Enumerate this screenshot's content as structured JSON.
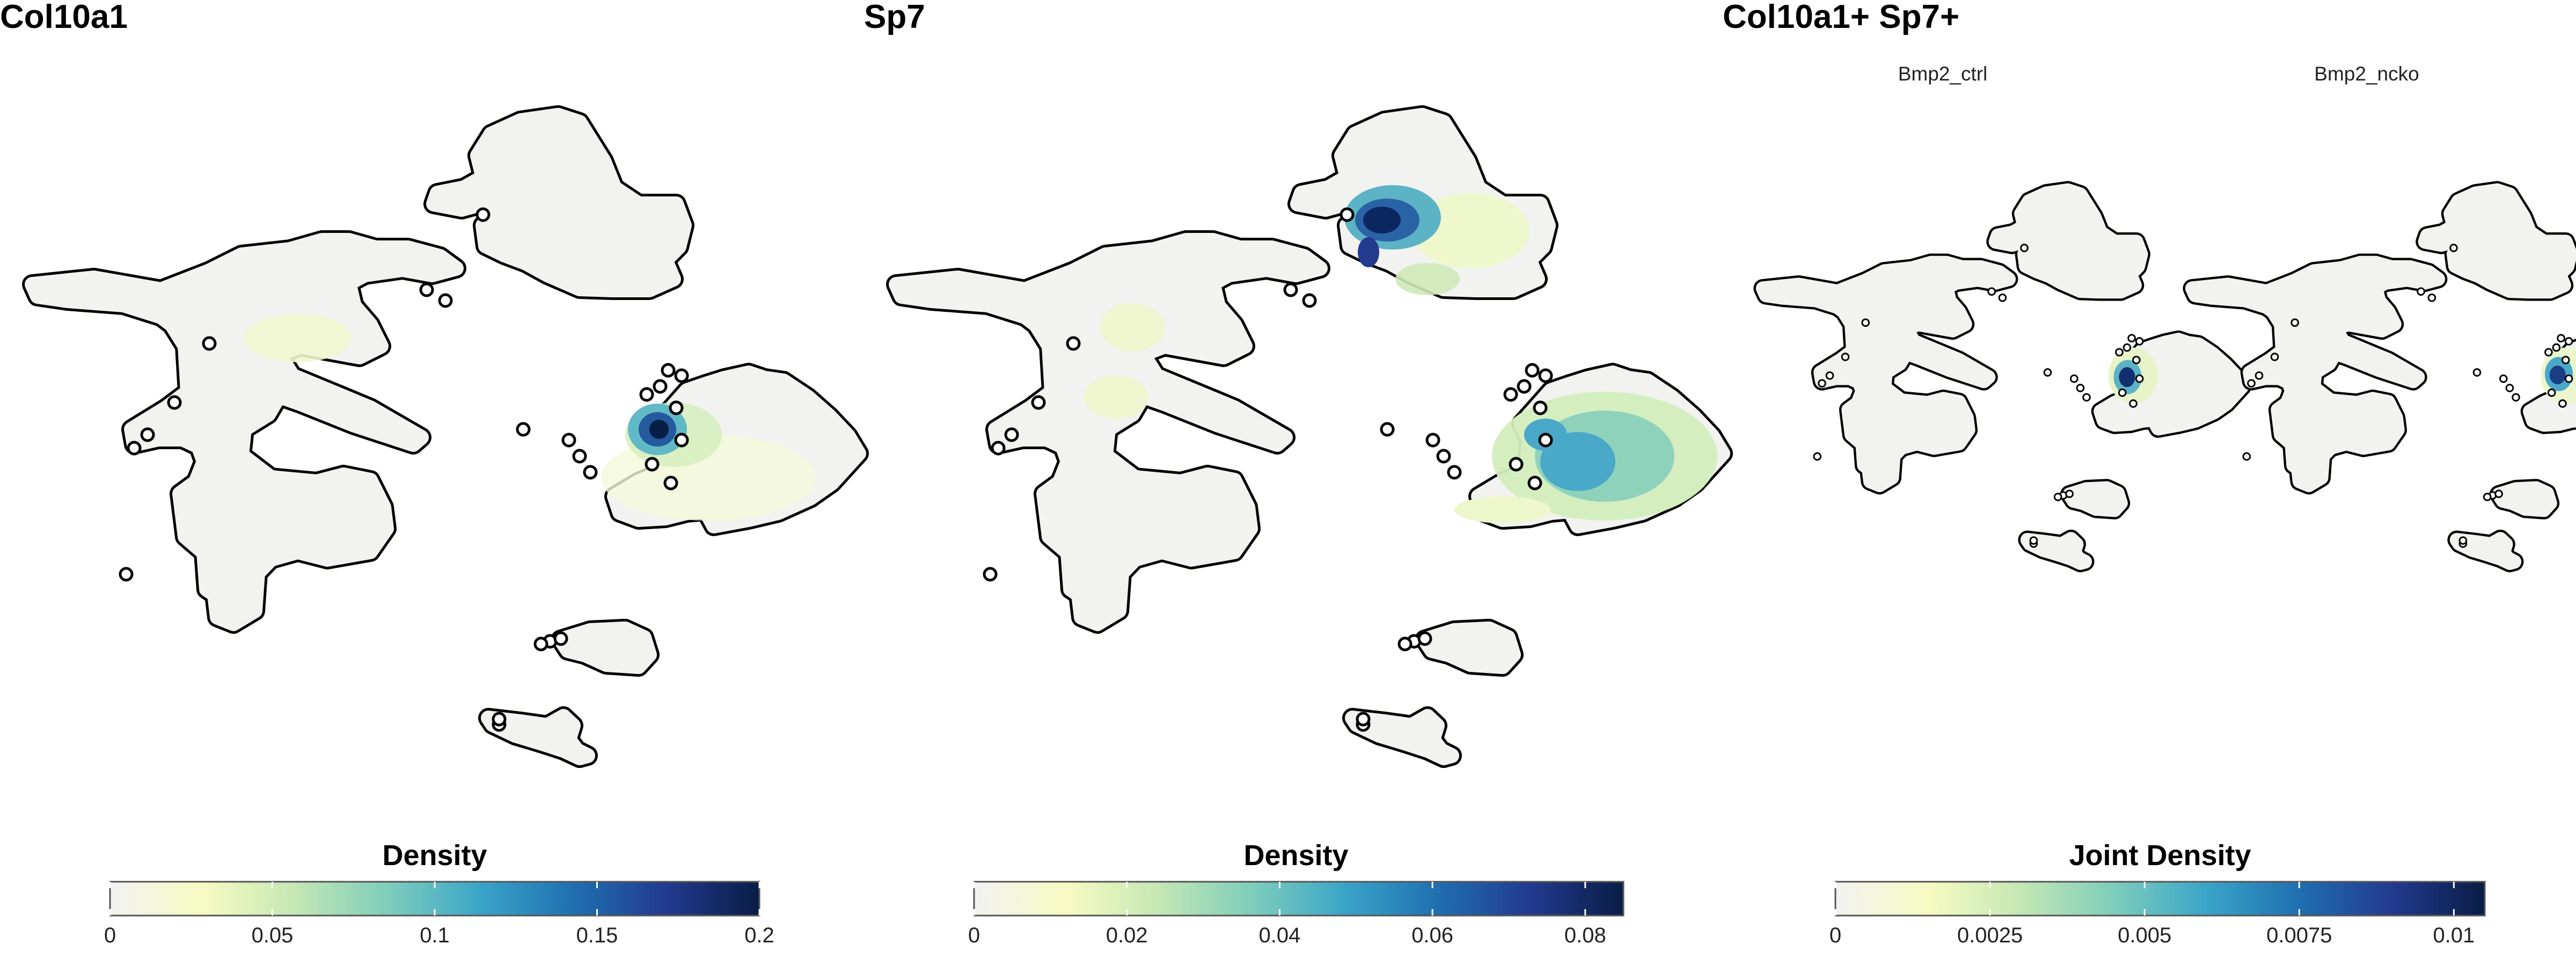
{
  "chart_data": [
    {
      "type": "heatmap",
      "title": "Col10a1",
      "facets": [],
      "legend_title": "Density",
      "legend_placement": "bottom",
      "scale_range": [
        0,
        0.2
      ],
      "ticks": [
        "0",
        "0.05",
        "0.1",
        "0.15",
        "0.2"
      ],
      "tick_values": [
        0,
        0.05,
        0.1,
        0.15,
        0.2
      ],
      "colormap": [
        "#f2f2f2",
        "#f7fbc2",
        "#c4e7b4",
        "#7ecdbb",
        "#3aa5c8",
        "#1f6fb0",
        "#233a8f",
        "#081d45"
      ],
      "hotspots": [
        {
          "region": "cluster-right-upper-left",
          "level": 0.2
        },
        {
          "region": "main-upper-center",
          "level": 0.04
        }
      ]
    },
    {
      "type": "heatmap",
      "title": "Sp7",
      "facets": [],
      "legend_title": "Density",
      "legend_placement": "bottom",
      "scale_range": [
        0,
        0.085
      ],
      "ticks": [
        "0",
        "0.02",
        "0.04",
        "0.06",
        "0.08"
      ],
      "tick_values": [
        0,
        0.02,
        0.04,
        0.06,
        0.08
      ],
      "colormap": [
        "#f2f2f2",
        "#f7fbc2",
        "#c4e7b4",
        "#7ecdbb",
        "#3aa5c8",
        "#1f6fb0",
        "#233a8f",
        "#081d45"
      ],
      "hotspots": [
        {
          "region": "top-cluster-left",
          "level": 0.085
        },
        {
          "region": "right-cluster-center",
          "level": 0.05
        },
        {
          "region": "main-upper-left",
          "level": 0.02
        }
      ]
    },
    {
      "type": "heatmap",
      "title": "Col10a1+ Sp7+",
      "facets": [
        "Bmp2_ctrl",
        "Bmp2_ncko"
      ],
      "legend_title": "Joint Density",
      "legend_placement": "bottom",
      "scale_range": [
        0,
        0.0105
      ],
      "ticks": [
        "0",
        "0.0025",
        "0.005",
        "0.0075",
        "0.01"
      ],
      "tick_values": [
        0,
        0.0025,
        0.005,
        0.0075,
        0.01
      ],
      "colormap": [
        "#f2f2f2",
        "#f7fbc2",
        "#c4e7b4",
        "#7ecdbb",
        "#3aa5c8",
        "#1f6fb0",
        "#233a8f",
        "#081d45"
      ],
      "hotspots": [
        {
          "facet": "Bmp2_ctrl",
          "region": "cluster-right-left",
          "level": 0.01
        },
        {
          "facet": "Bmp2_ncko",
          "region": "cluster-right-left",
          "level": 0.009
        }
      ]
    }
  ]
}
